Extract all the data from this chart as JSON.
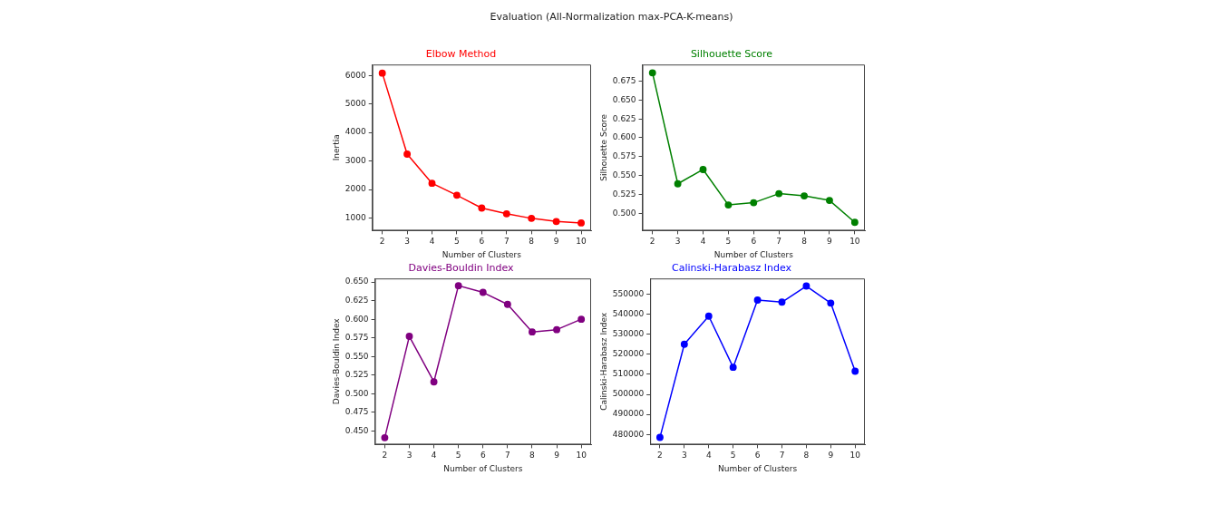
{
  "chart_data": [
    {
      "type": "line",
      "title": "Elbow Method",
      "xlabel": "Number of Clusters",
      "ylabel": "Inertia",
      "annotations": [
        "Evaluation (All-Normalization max-PCA-K-means)"
      ],
      "x": [
        2,
        3,
        4,
        5,
        6,
        7,
        8,
        9,
        10
      ],
      "series": [
        {
          "color": "#ff0000",
          "values": [
            6080,
            3240,
            2220,
            1800,
            1350,
            1150,
            990,
            880,
            830
          ]
        }
      ],
      "xlim": [
        1.6,
        10.4
      ],
      "xticks": [
        2,
        3,
        4,
        5,
        6,
        7,
        8,
        9,
        10
      ],
      "ylim": [
        560,
        6380
      ],
      "yticks": [
        1000,
        2000,
        3000,
        4000,
        5000,
        6000
      ],
      "grid": false,
      "legend": false,
      "marker": "circle",
      "line_style": "solid"
    },
    {
      "type": "line",
      "title": "Silhouette Score",
      "xlabel": "Number of Clusters",
      "ylabel": "Silhouette Score",
      "x": [
        2,
        3,
        4,
        5,
        6,
        7,
        8,
        9,
        10
      ],
      "series": [
        {
          "color": "#008000",
          "values": [
            0.686,
            0.539,
            0.558,
            0.511,
            0.514,
            0.526,
            0.523,
            0.517,
            0.488
          ]
        }
      ],
      "xlim": [
        1.6,
        10.4
      ],
      "xticks": [
        2,
        3,
        4,
        5,
        6,
        7,
        8,
        9,
        10
      ],
      "ylim": [
        0.477,
        0.697
      ],
      "yticks": [
        {
          "value": 0.5,
          "label": "0.500"
        },
        0.525,
        {
          "value": 0.55,
          "label": "0.550"
        },
        0.575,
        {
          "value": 0.6,
          "label": "0.600"
        },
        0.625,
        {
          "value": 0.65,
          "label": "0.650"
        },
        0.675
      ],
      "grid": false,
      "legend": false,
      "marker": "circle",
      "line_style": "solid"
    },
    {
      "type": "line",
      "title": "Davies-Bouldin Index",
      "xlabel": "Number of Clusters",
      "ylabel": "Davies-Bouldin Index",
      "x": [
        2,
        3,
        4,
        5,
        6,
        7,
        8,
        9,
        10
      ],
      "series": [
        {
          "color": "#800080",
          "values": [
            0.441,
            0.577,
            0.516,
            0.645,
            0.636,
            0.62,
            0.583,
            0.586,
            0.6
          ]
        }
      ],
      "xlim": [
        1.6,
        10.4
      ],
      "xticks": [
        2,
        3,
        4,
        5,
        6,
        7,
        8,
        9,
        10
      ],
      "ylim": [
        0.4318,
        0.6547
      ],
      "yticks": [
        {
          "value": 0.45,
          "label": "0.450"
        },
        0.475,
        {
          "value": 0.5,
          "label": "0.500"
        },
        0.525,
        {
          "value": 0.55,
          "label": "0.550"
        },
        0.575,
        {
          "value": 0.6,
          "label": "0.600"
        },
        0.625,
        {
          "value": 0.65,
          "label": "0.650"
        }
      ],
      "grid": false,
      "legend": false,
      "marker": "circle",
      "line_style": "solid"
    },
    {
      "type": "line",
      "title": "Calinski-Harabasz Index",
      "xlabel": "Number of Clusters",
      "ylabel": "Calinski-Harabasz Index",
      "x": [
        2,
        3,
        4,
        5,
        6,
        7,
        8,
        9,
        10
      ],
      "series": [
        {
          "color": "#0000ff",
          "values": [
            478500,
            525000,
            539000,
            513500,
            547000,
            546000,
            554000,
            545500,
            511500
          ]
        }
      ],
      "xlim": [
        1.6,
        10.4
      ],
      "xticks": [
        2,
        3,
        4,
        5,
        6,
        7,
        8,
        9,
        10
      ],
      "ylim": [
        474960,
        557780
      ],
      "yticks": [
        480000,
        490000,
        500000,
        510000,
        520000,
        530000,
        540000,
        550000
      ],
      "grid": false,
      "legend": false,
      "marker": "circle",
      "line_style": "solid"
    }
  ]
}
